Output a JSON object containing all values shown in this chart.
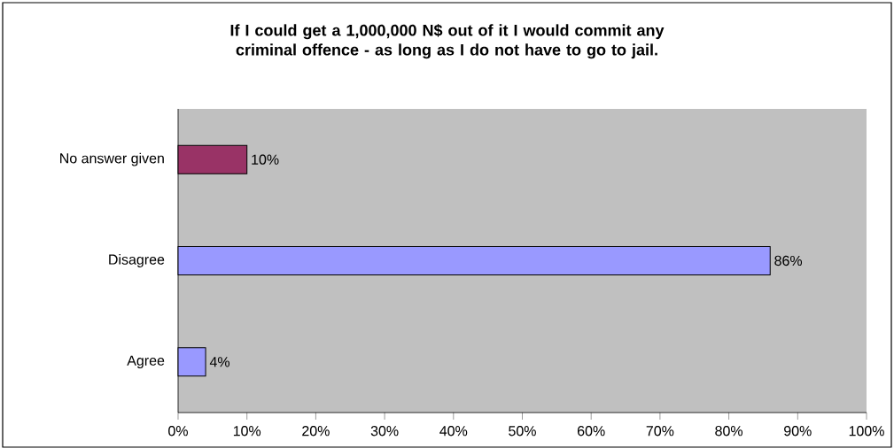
{
  "chart_data": {
    "type": "bar",
    "orientation": "horizontal",
    "title": "If I could get a 1,000,000 N$ out of it I would commit any criminal offence - as long as I do not have to go to jail.",
    "categories": [
      "No answer given",
      "Disagree",
      "Agree"
    ],
    "values": [
      10,
      86,
      4
    ],
    "colors": [
      "#993366",
      "#9999ff",
      "#9999ff"
    ],
    "value_labels": [
      "10%",
      "86%",
      "4%"
    ],
    "xlim": [
      0,
      100
    ],
    "xticks": [
      {
        "value": 0,
        "label": "0%"
      },
      {
        "value": 10,
        "label": "10%"
      },
      {
        "value": 20,
        "label": "20%"
      },
      {
        "value": 30,
        "label": "30%"
      },
      {
        "value": 40,
        "label": "40%"
      },
      {
        "value": 50,
        "label": "50%"
      },
      {
        "value": 60,
        "label": "60%"
      },
      {
        "value": 70,
        "label": "70%"
      },
      {
        "value": 80,
        "label": "80%"
      },
      {
        "value": 90,
        "label": "90%"
      },
      {
        "value": 100,
        "label": "100%"
      }
    ]
  }
}
